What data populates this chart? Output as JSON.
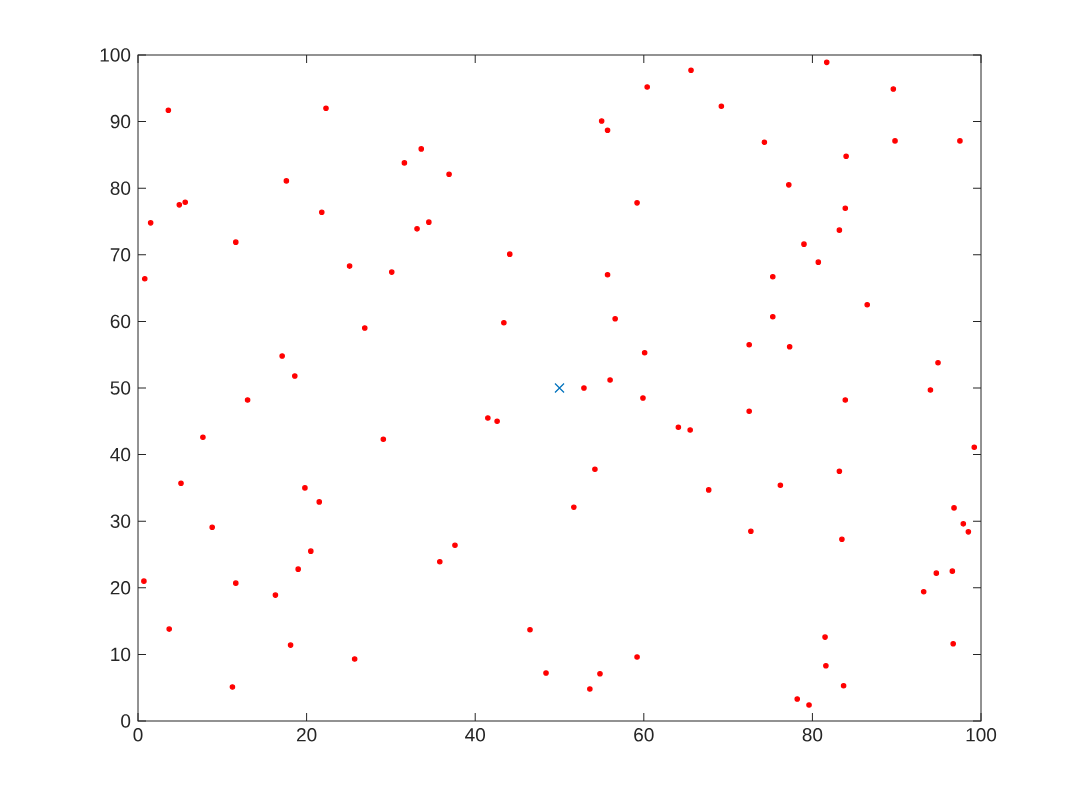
{
  "chart_data": {
    "type": "scatter",
    "xlim": [
      0,
      100
    ],
    "ylim": [
      0,
      100
    ],
    "xticks": [
      0,
      20,
      40,
      60,
      80,
      100
    ],
    "yticks": [
      0,
      10,
      20,
      30,
      40,
      50,
      60,
      70,
      80,
      90,
      100
    ],
    "grid": false,
    "series": [
      {
        "color": "#ff0000",
        "marker": "circle",
        "x": [
          0.8,
          1.5,
          3.6,
          0.7,
          3.7,
          4.9,
          5.6,
          5.1,
          7.7,
          8.8,
          11.6,
          11.6,
          11.2,
          13.0,
          16.3,
          17.6,
          17.1,
          18.6,
          18.1,
          19.8,
          19.0,
          20.5,
          21.5,
          21.8,
          22.3,
          25.1,
          25.7,
          26.9,
          30.1,
          29.1,
          31.6,
          33.6,
          33.1,
          34.5,
          36.9,
          35.8,
          37.6,
          41.5,
          42.6,
          43.4,
          44.1,
          46.5,
          48.4,
          52.9,
          51.7,
          54.2,
          55.0,
          55.7,
          54.8,
          53.6,
          55.7,
          56.6,
          56.0,
          59.2,
          60.4,
          60.1,
          59.9,
          59.2,
          65.6,
          64.1,
          65.5,
          69.2,
          67.7,
          74.3,
          72.5,
          72.5,
          72.7,
          77.2,
          75.3,
          75.3,
          77.3,
          76.2,
          79.0,
          80.7,
          81.7,
          78.2,
          79.6,
          81.5,
          81.6,
          83.2,
          83.9,
          84.0,
          83.2,
          83.9,
          83.5,
          83.7,
          86.5,
          89.6,
          89.8,
          94.0,
          94.9,
          93.2,
          94.7,
          97.5,
          96.8,
          97.9,
          98.5,
          96.6,
          96.7,
          99.2
        ],
        "values": [
          66.4,
          74.8,
          91.7,
          21.0,
          13.8,
          77.5,
          77.9,
          35.7,
          42.6,
          29.1,
          71.9,
          20.7,
          5.1,
          48.2,
          18.9,
          81.1,
          54.8,
          51.8,
          11.4,
          35.0,
          22.8,
          25.5,
          32.9,
          76.4,
          92.0,
          68.3,
          9.3,
          59.0,
          67.4,
          42.3,
          83.8,
          85.9,
          73.9,
          74.9,
          82.1,
          23.9,
          26.4,
          45.5,
          45.0,
          59.8,
          70.1,
          13.7,
          7.2,
          50.0,
          32.1,
          37.8,
          90.1,
          88.7,
          7.1,
          4.8,
          67.0,
          60.4,
          51.2,
          77.8,
          95.2,
          55.3,
          48.5,
          9.6,
          97.7,
          44.1,
          43.7,
          92.3,
          34.7,
          86.9,
          56.5,
          46.5,
          28.5,
          80.5,
          66.7,
          60.7,
          56.2,
          35.4,
          71.6,
          68.9,
          98.9,
          3.3,
          2.4,
          12.6,
          8.3,
          73.7,
          77.0,
          84.8,
          37.5,
          48.2,
          27.3,
          5.3,
          62.5,
          94.9,
          87.1,
          49.7,
          53.8,
          19.4,
          22.2,
          87.1,
          32.0,
          29.6,
          28.4,
          22.5,
          11.6,
          41.1
        ]
      },
      {
        "color": "#0072bd",
        "marker": "cross",
        "x": [
          50
        ],
        "values": [
          50
        ]
      }
    ]
  }
}
